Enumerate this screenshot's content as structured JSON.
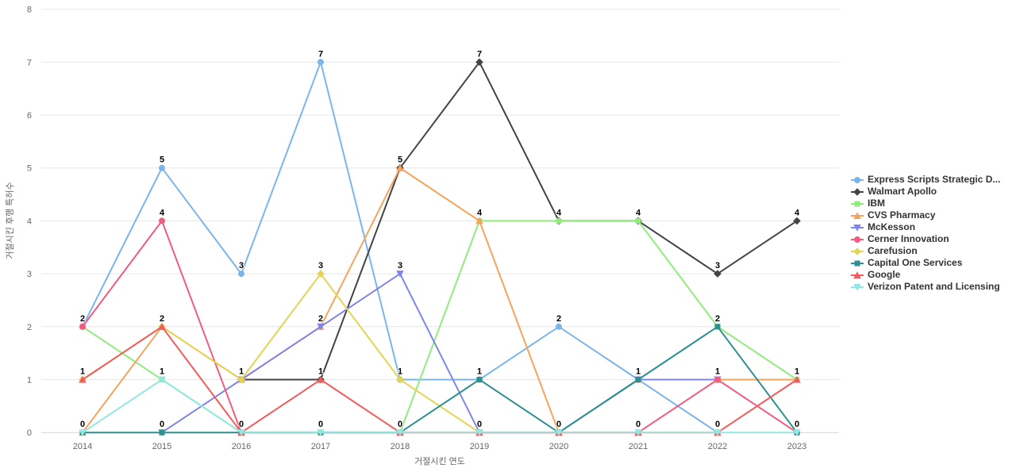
{
  "chart_data": {
    "type": "line",
    "title": "",
    "xlabel": "거절시킨 연도",
    "ylabel": "거절시킨 후행 특허수",
    "x": [
      2014,
      2015,
      2016,
      2017,
      2018,
      2019,
      2020,
      2021,
      2022,
      2023
    ],
    "ylim": [
      0,
      8
    ],
    "y_ticks": [
      0,
      1,
      2,
      3,
      4,
      5,
      6,
      7,
      8
    ],
    "grid": "horizontal-only",
    "legend_position": "right",
    "gridline_color": "#e6e6e6",
    "axis_line_color": "#ccd6eb",
    "tick_label_color": "#666666",
    "data_labels": "bold black numbers above each point",
    "series": [
      {
        "name": "Express Scripts Strategic D...",
        "color": "#7cb5ec",
        "marker": "circle",
        "years": [
          2014,
          2015,
          2016,
          2017,
          2018,
          2019,
          2020,
          2021,
          2022
        ],
        "values": [
          2,
          5,
          3,
          7,
          1,
          1,
          2,
          1,
          0
        ]
      },
      {
        "name": "Walmart Apollo",
        "color": "#434348",
        "marker": "diamond",
        "years": [
          2016,
          2017,
          2018,
          2019,
          2020,
          2021,
          2022,
          2023
        ],
        "values": [
          1,
          1,
          5,
          7,
          4,
          4,
          3,
          4
        ]
      },
      {
        "name": "IBM",
        "color": "#90ed7d",
        "marker": "square",
        "years": [
          2014,
          2015,
          2016,
          2017,
          2018,
          2019,
          2020,
          2021,
          2022,
          2023
        ],
        "values": [
          2,
          1,
          0,
          0,
          0,
          4,
          4,
          4,
          2,
          1
        ]
      },
      {
        "name": "CVS Pharmacy",
        "color": "#f7a35c",
        "marker": "triangle",
        "years": [
          2014,
          2015,
          2016,
          2017,
          2018,
          2019,
          2020,
          2021,
          2022,
          2023
        ],
        "values": [
          0,
          2,
          1,
          2,
          5,
          4,
          0,
          1,
          1,
          1
        ]
      },
      {
        "name": "McKesson",
        "color": "#8085e9",
        "marker": "triangle-down",
        "years": [
          2015,
          2016,
          2017,
          2018,
          2019,
          2020,
          2021,
          2022
        ],
        "values": [
          0,
          1,
          2,
          3,
          0,
          0,
          1,
          1
        ]
      },
      {
        "name": "Cerner Innovation",
        "color": "#f15c80",
        "marker": "circle",
        "years": [
          2014,
          2015,
          2016,
          2017,
          2018,
          2019,
          2020,
          2021,
          2022,
          2023
        ],
        "values": [
          2,
          4,
          0,
          0,
          0,
          0,
          0,
          0,
          1,
          0
        ]
      },
      {
        "name": "Carefusion",
        "color": "#e4d354",
        "marker": "diamond",
        "years": [
          2014,
          2015,
          2016,
          2017,
          2018,
          2019
        ],
        "values": [
          1,
          2,
          1,
          3,
          1,
          0
        ]
      },
      {
        "name": "Capital One Services",
        "color": "#2b908f",
        "marker": "square",
        "years": [
          2014,
          2015,
          2016,
          2017,
          2018,
          2019,
          2020,
          2021,
          2022,
          2023
        ],
        "values": [
          0,
          0,
          0,
          0,
          0,
          1,
          0,
          1,
          2,
          0
        ]
      },
      {
        "name": "Google",
        "color": "#f45b5b",
        "marker": "triangle",
        "years": [
          2014,
          2015,
          2016,
          2017,
          2018,
          2019,
          2020,
          2021,
          2022,
          2023
        ],
        "values": [
          1,
          2,
          0,
          1,
          0,
          0,
          0,
          0,
          0,
          1
        ]
      },
      {
        "name": "Verizon Patent and Licensing",
        "color": "#91e8e1",
        "marker": "triangle-down",
        "years": [
          2014,
          2015,
          2016,
          2017,
          2018,
          2019,
          2020,
          2021,
          2022,
          2023
        ],
        "values": [
          0,
          1,
          0,
          0,
          0,
          0,
          0,
          0,
          0,
          0
        ]
      }
    ]
  }
}
